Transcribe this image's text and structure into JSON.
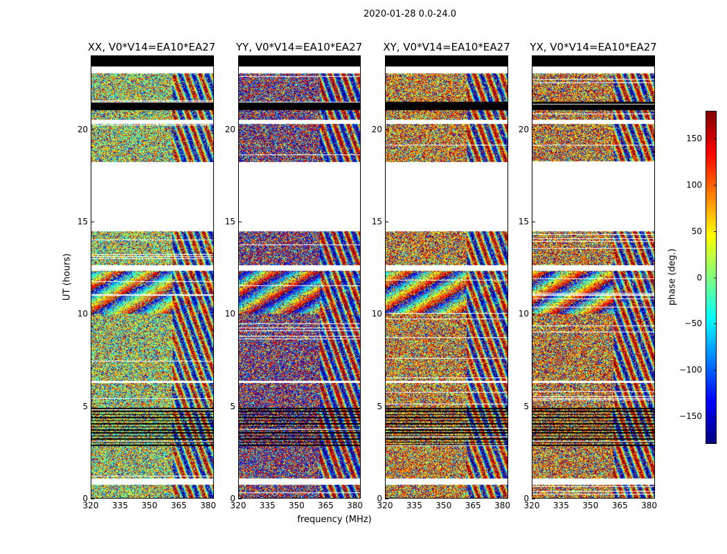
{
  "suptitle": "2020-01-28 0.0-24.0",
  "chart_data": {
    "type": "heatmap",
    "panels": [
      {
        "title": "XX, V0*V14=EA10*EA27",
        "hue_offset": 0.0,
        "hue_bias": -0.35
      },
      {
        "title": "YY, V0*V14=EA10*EA27",
        "hue_offset": 1.7,
        "hue_bias": 0.5
      },
      {
        "title": "XY, V0*V14=EA10*EA27",
        "hue_offset": 3.1,
        "hue_bias": 0.0
      },
      {
        "title": "YX, V0*V14=EA10*EA27",
        "hue_offset": 4.4,
        "hue_bias": 0.05
      }
    ],
    "xlabel": "frequency (MHz)",
    "ylabel": "UT (hours)",
    "xlim": [
      320,
      383
    ],
    "ylim": [
      0,
      24
    ],
    "xticks": [
      320,
      335,
      350,
      365,
      380
    ],
    "yticks": [
      0,
      5,
      10,
      15,
      20
    ],
    "colorbar": {
      "label": "phase (deg.)",
      "range": [
        -180,
        180
      ],
      "ticks": [
        -150,
        -100,
        -50,
        0,
        50,
        100,
        150
      ],
      "tick_labels": [
        "−150",
        "−100",
        "−50",
        "0",
        "50",
        "100",
        "150"
      ],
      "colormap": "jet"
    },
    "data_gaps_hours": [
      [
        0.7,
        1.05
      ],
      [
        6.25,
        6.35
      ],
      [
        12.35,
        12.65
      ],
      [
        14.5,
        18.25
      ],
      [
        20.3,
        20.55
      ],
      [
        23.05,
        23.45
      ]
    ],
    "flagged_black_hours": [
      [
        21.05,
        21.5
      ],
      [
        23.45,
        24.0
      ]
    ]
  }
}
